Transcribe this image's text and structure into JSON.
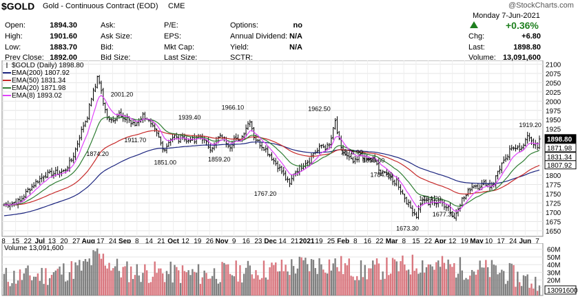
{
  "header": {
    "symbol": "$GOLD",
    "name": "Gold - Continuous Contract (EOD)",
    "exchange": "CME",
    "watermark": "@StockCharts.com",
    "date": "Monday  7-Jun-2021",
    "pct_change": "+0.36%",
    "stats": [
      {
        "label": "Open:",
        "value": "1894.30"
      },
      {
        "label": "High:",
        "value": "1901.60"
      },
      {
        "label": "Low:",
        "value": "1883.70"
      },
      {
        "label": "Prev Close:",
        "value": "1892.00"
      }
    ],
    "col2": [
      "Ask:",
      "Ask Size:",
      "Bid:",
      "Bid Size:"
    ],
    "col3": [
      "P/E:",
      "EPS:",
      "Mkt Cap:",
      "Last Size:"
    ],
    "col4": [
      {
        "label": "Options:",
        "value": "no"
      },
      {
        "label": "Annual Dividend:",
        "value": "N/A"
      },
      {
        "label": "Yield:",
        "value": "N/A"
      },
      {
        "label": "SCTR:",
        "value": ""
      }
    ],
    "right_stats": [
      {
        "label": "Chg:",
        "value": "+6.80"
      },
      {
        "label": "Last:",
        "value": "1898.80"
      },
      {
        "label": "Volume:",
        "value": "13,091,600"
      }
    ]
  },
  "legend": [
    {
      "text": "$GOLD (Daily) 1898.80",
      "color": "#000000",
      "style": "bar"
    },
    {
      "text": "EMA(200) 1807.92",
      "color": "#1a237e",
      "style": "line"
    },
    {
      "text": "EMA(50) 1831.34",
      "color": "#c62828",
      "style": "line"
    },
    {
      "text": "EMA(20) 1871.98",
      "color": "#2e7d32",
      "style": "line"
    },
    {
      "text": "EMA(8) 1893.02",
      "color": "#e040fb",
      "style": "line"
    }
  ],
  "right_tags": [
    {
      "text": "1898.80",
      "value": 1898.8,
      "bg": "#000000",
      "fg": "#ffffff"
    },
    {
      "text": "1871.98",
      "value": 1871.98,
      "bg": "#ffffff",
      "fg": "#000000"
    },
    {
      "text": "1831.34",
      "value": 1831.34,
      "bg": "#ffffff",
      "fg": "#000000"
    },
    {
      "text": "1807.92",
      "value": 1807.92,
      "bg": "#ffffff",
      "fg": "#000000"
    }
  ],
  "volume_panel": {
    "label": "Volume 13,091,600",
    "ticks": [
      "60M",
      "50M",
      "40M",
      "30M",
      "20M",
      "10M"
    ],
    "tick_values": [
      60,
      50,
      40,
      30,
      20,
      10
    ],
    "last_tag": "13091600"
  },
  "chart_data": {
    "type": "line",
    "y_ticks": [
      2100,
      2075,
      2050,
      2025,
      2000,
      1975,
      1950,
      1925,
      1900,
      1875,
      1850,
      1825,
      1800,
      1775,
      1750,
      1725,
      1700,
      1675,
      1650
    ],
    "ylim": [
      1635,
      2110
    ],
    "x_labels": [
      "8",
      "15",
      "22",
      "Jul",
      "13",
      "20",
      "27",
      "Aug",
      "17",
      "24",
      "Sep",
      "8",
      "14",
      "21",
      "Oct",
      "12",
      "19",
      "26",
      "Nov",
      "9",
      "16",
      "23",
      "Dec",
      "14",
      "21",
      "2021",
      "19",
      "25",
      "Feb",
      "8",
      "16",
      "22",
      "Mar",
      "8",
      "15",
      "22",
      "Apr",
      "12",
      "19",
      "May",
      "10",
      "17",
      "24",
      "Jun",
      "7"
    ],
    "bold_x_labels": [
      "Jul",
      "Aug",
      "Sep",
      "Oct",
      "Nov",
      "Dec",
      "2021",
      "Feb",
      "Mar",
      "Apr",
      "May",
      "Jun"
    ],
    "annotations": [
      {
        "text": "2001.20",
        "value": 2001.2
      },
      {
        "text": "1874.20",
        "value": 1874.2
      },
      {
        "text": "1911.70",
        "value": 1911.7
      },
      {
        "text": "1851.00",
        "value": 1851.0
      },
      {
        "text": "1939.40",
        "value": 1939.4
      },
      {
        "text": "1859.20",
        "value": 1859.2
      },
      {
        "text": "1966.10",
        "value": 1966.1
      },
      {
        "text": "1767.20",
        "value": 1767.2
      },
      {
        "text": "1962.50",
        "value": 1962.5
      },
      {
        "text": "1878.90",
        "value": 1878.9
      },
      {
        "text": "1856.60",
        "value": 1856.6
      },
      {
        "text": "1784.60",
        "value": 1784.6
      },
      {
        "text": "1673.30",
        "value": 1673.3
      },
      {
        "text": "1754.20",
        "value": 1754.2
      },
      {
        "text": "1677.30",
        "value": 1677.3
      },
      {
        "text": "1919.20",
        "value": 1919.2
      }
    ],
    "close_keypoints": [
      [
        0,
        1720
      ],
      [
        8,
        1730
      ],
      [
        12,
        1760
      ],
      [
        20,
        1800
      ],
      [
        24,
        1805
      ],
      [
        30,
        1810
      ],
      [
        34,
        1840
      ],
      [
        36,
        1870
      ],
      [
        38,
        1905
      ],
      [
        40,
        1935
      ],
      [
        42,
        1960
      ],
      [
        44,
        2010
      ],
      [
        46,
        2040
      ],
      [
        47,
        2070
      ],
      [
        49,
        2030
      ],
      [
        50,
        1990
      ],
      [
        52,
        1960
      ],
      [
        54,
        1950
      ],
      [
        56,
        1955
      ],
      [
        58,
        1965
      ],
      [
        60,
        1948
      ],
      [
        62,
        1960
      ],
      [
        64,
        1940
      ],
      [
        66,
        1935
      ],
      [
        68,
        1950
      ],
      [
        70,
        1962
      ],
      [
        72,
        1955
      ],
      [
        74,
        1935
      ],
      [
        76,
        1920
      ],
      [
        78,
        1900
      ],
      [
        80,
        1870
      ],
      [
        82,
        1880
      ],
      [
        84,
        1900
      ],
      [
        86,
        1905
      ],
      [
        88,
        1895
      ],
      [
        90,
        1910
      ],
      [
        92,
        1890
      ],
      [
        94,
        1900
      ],
      [
        96,
        1890
      ],
      [
        98,
        1905
      ],
      [
        100,
        1900
      ],
      [
        102,
        1885
      ],
      [
        104,
        1875
      ],
      [
        106,
        1880
      ],
      [
        108,
        1900
      ],
      [
        110,
        1905
      ],
      [
        112,
        1890
      ],
      [
        114,
        1880
      ],
      [
        116,
        1900
      ],
      [
        118,
        1890
      ],
      [
        120,
        1905
      ],
      [
        122,
        1930
      ],
      [
        124,
        1950
      ],
      [
        126,
        1905
      ],
      [
        128,
        1890
      ],
      [
        130,
        1880
      ],
      [
        132,
        1870
      ],
      [
        134,
        1855
      ],
      [
        136,
        1840
      ],
      [
        138,
        1825
      ],
      [
        140,
        1810
      ],
      [
        142,
        1790
      ],
      [
        144,
        1775
      ],
      [
        146,
        1805
      ],
      [
        148,
        1815
      ],
      [
        150,
        1825
      ],
      [
        152,
        1835
      ],
      [
        154,
        1840
      ],
      [
        156,
        1860
      ],
      [
        158,
        1865
      ],
      [
        160,
        1880
      ],
      [
        162,
        1875
      ],
      [
        164,
        1880
      ],
      [
        165,
        1900
      ],
      [
        167,
        1945
      ],
      [
        168,
        1915
      ],
      [
        170,
        1870
      ],
      [
        172,
        1855
      ],
      [
        174,
        1845
      ],
      [
        176,
        1835
      ],
      [
        178,
        1840
      ],
      [
        180,
        1860
      ],
      [
        182,
        1845
      ],
      [
        184,
        1840
      ],
      [
        186,
        1845
      ],
      [
        188,
        1830
      ],
      [
        190,
        1800
      ],
      [
        192,
        1815
      ],
      [
        194,
        1795
      ],
      [
        196,
        1780
      ],
      [
        198,
        1785
      ],
      [
        200,
        1760
      ],
      [
        202,
        1740
      ],
      [
        204,
        1720
      ],
      [
        206,
        1705
      ],
      [
        208,
        1690
      ],
      [
        210,
        1725
      ],
      [
        212,
        1735
      ],
      [
        214,
        1720
      ],
      [
        216,
        1735
      ],
      [
        218,
        1725
      ],
      [
        220,
        1730
      ],
      [
        222,
        1720
      ],
      [
        224,
        1715
      ],
      [
        226,
        1690
      ],
      [
        227,
        1685
      ],
      [
        229,
        1715
      ],
      [
        231,
        1735
      ],
      [
        233,
        1745
      ],
      [
        235,
        1765
      ],
      [
        237,
        1775
      ],
      [
        239,
        1770
      ],
      [
        241,
        1775
      ],
      [
        243,
        1780
      ],
      [
        245,
        1770
      ],
      [
        247,
        1780
      ],
      [
        249,
        1810
      ],
      [
        251,
        1830
      ],
      [
        253,
        1840
      ],
      [
        255,
        1865
      ],
      [
        257,
        1875
      ],
      [
        259,
        1880
      ],
      [
        261,
        1870
      ],
      [
        263,
        1890
      ],
      [
        264,
        1910
      ],
      [
        266,
        1895
      ],
      [
        268,
        1880
      ],
      [
        269,
        1873
      ],
      [
        270,
        1898
      ]
    ],
    "volume_keypoints": [
      [
        0,
        22
      ],
      [
        20,
        25
      ],
      [
        40,
        35
      ],
      [
        47,
        50
      ],
      [
        60,
        30
      ],
      [
        80,
        28
      ],
      [
        100,
        26
      ],
      [
        120,
        30
      ],
      [
        140,
        33
      ],
      [
        150,
        38
      ],
      [
        165,
        40
      ],
      [
        180,
        30
      ],
      [
        200,
        36
      ],
      [
        210,
        40
      ],
      [
        230,
        34
      ],
      [
        250,
        30
      ],
      [
        270,
        13
      ]
    ]
  }
}
